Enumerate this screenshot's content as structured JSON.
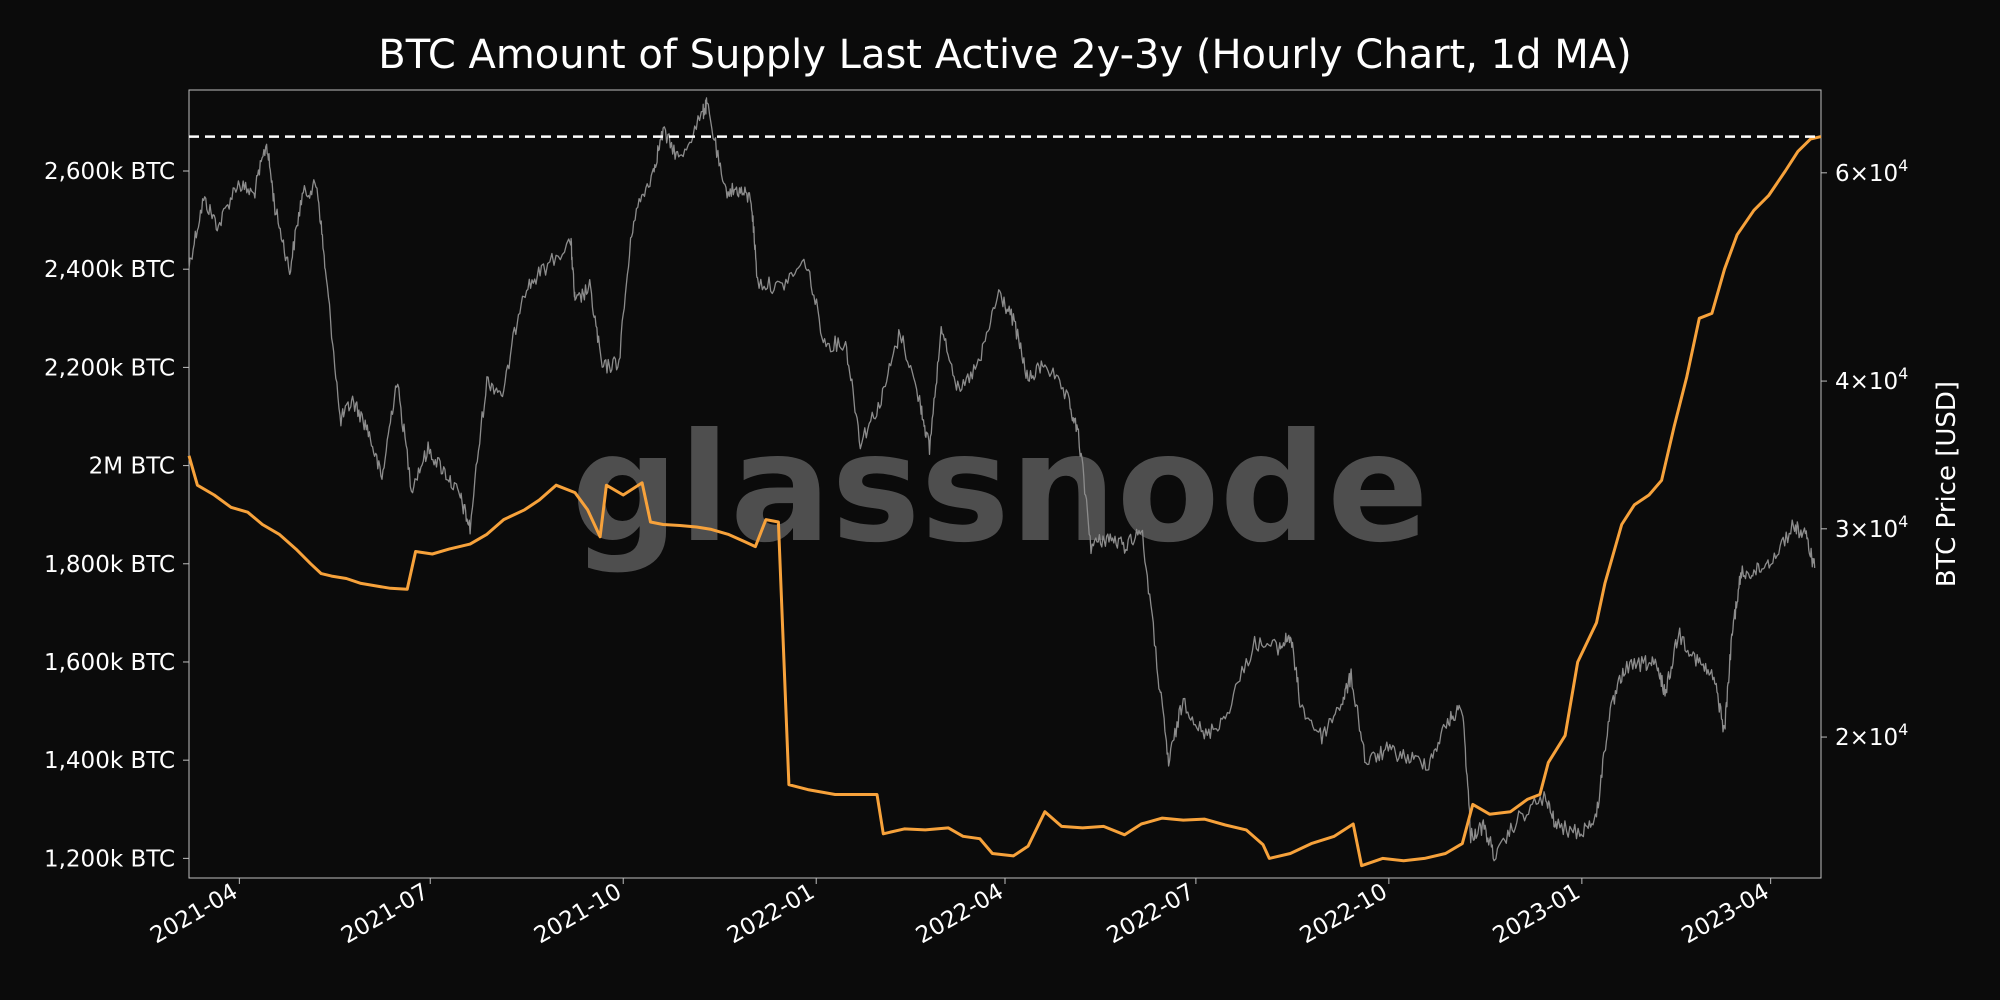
{
  "watermark": "glassnode",
  "chart_data": {
    "type": "line",
    "title": "BTC Amount of Supply Last Active 2y-3y (Hourly Chart, 1d MA)",
    "x_range": [
      "2021-03-08",
      "2023-04-25"
    ],
    "x_ticks": [
      "2021-04",
      "2021-07",
      "2021-10",
      "2022-01",
      "2022-04",
      "2022-07",
      "2022-10",
      "2023-01",
      "2023-04"
    ],
    "y_left": {
      "label": "",
      "range": [
        1160000,
        2765000
      ],
      "ticks": [
        {
          "value": 1200000,
          "label": "1,200k BTC"
        },
        {
          "value": 1400000,
          "label": "1,400k BTC"
        },
        {
          "value": 1600000,
          "label": "1,600k BTC"
        },
        {
          "value": 1800000,
          "label": "1,800k BTC"
        },
        {
          "value": 2000000,
          "label": "2M BTC"
        },
        {
          "value": 2200000,
          "label": "2,200k BTC"
        },
        {
          "value": 2400000,
          "label": "2,400k BTC"
        },
        {
          "value": 2600000,
          "label": "2,600k BTC"
        }
      ]
    },
    "y_right": {
      "label": "BTC Price [USD]",
      "scale": "log",
      "range": [
        15200,
        70500
      ],
      "ticks": [
        {
          "value": 20000,
          "mant": "2",
          "exp": "4"
        },
        {
          "value": 30000,
          "mant": "3",
          "exp": "4"
        },
        {
          "value": 40000,
          "mant": "4",
          "exp": "4"
        },
        {
          "value": 60000,
          "mant": "6",
          "exp": "4"
        }
      ]
    },
    "reference_line": {
      "value": 2670000,
      "style": "dashed",
      "color": "#ffffff"
    },
    "series": [
      {
        "axis": "left",
        "color": "#f7a23b",
        "points": [
          [
            "2021-03-08",
            2020000
          ],
          [
            "2021-03-12",
            1960000
          ],
          [
            "2021-03-20",
            1940000
          ],
          [
            "2021-03-28",
            1915000
          ],
          [
            "2021-04-05",
            1905000
          ],
          [
            "2021-04-12",
            1880000
          ],
          [
            "2021-04-20",
            1860000
          ],
          [
            "2021-04-28",
            1830000
          ],
          [
            "2021-05-05",
            1800000
          ],
          [
            "2021-05-10",
            1780000
          ],
          [
            "2021-05-15",
            1775000
          ],
          [
            "2021-05-22",
            1770000
          ],
          [
            "2021-05-29",
            1760000
          ],
          [
            "2021-06-05",
            1755000
          ],
          [
            "2021-06-12",
            1750000
          ],
          [
            "2021-06-20",
            1748000
          ],
          [
            "2021-06-24",
            1825000
          ],
          [
            "2021-07-02",
            1820000
          ],
          [
            "2021-07-10",
            1830000
          ],
          [
            "2021-07-20",
            1840000
          ],
          [
            "2021-07-28",
            1860000
          ],
          [
            "2021-08-05",
            1890000
          ],
          [
            "2021-08-15",
            1910000
          ],
          [
            "2021-08-22",
            1930000
          ],
          [
            "2021-08-30",
            1960000
          ],
          [
            "2021-09-08",
            1945000
          ],
          [
            "2021-09-14",
            1910000
          ],
          [
            "2021-09-20",
            1855000
          ],
          [
            "2021-09-23",
            1960000
          ],
          [
            "2021-10-01",
            1940000
          ],
          [
            "2021-10-10",
            1965000
          ],
          [
            "2021-10-14",
            1885000
          ],
          [
            "2021-10-20",
            1880000
          ],
          [
            "2021-10-28",
            1878000
          ],
          [
            "2021-11-05",
            1875000
          ],
          [
            "2021-11-12",
            1870000
          ],
          [
            "2021-11-20",
            1860000
          ],
          [
            "2021-11-28",
            1845000
          ],
          [
            "2021-12-03",
            1835000
          ],
          [
            "2021-12-08",
            1890000
          ],
          [
            "2021-12-14",
            1885000
          ],
          [
            "2021-12-19",
            1350000
          ],
          [
            "2021-12-28",
            1340000
          ],
          [
            "2022-01-10",
            1330000
          ],
          [
            "2022-01-20",
            1330000
          ],
          [
            "2022-01-30",
            1330000
          ],
          [
            "2022-02-02",
            1250000
          ],
          [
            "2022-02-12",
            1260000
          ],
          [
            "2022-02-22",
            1258000
          ],
          [
            "2022-03-05",
            1262000
          ],
          [
            "2022-03-12",
            1245000
          ],
          [
            "2022-03-20",
            1240000
          ],
          [
            "2022-03-26",
            1210000
          ],
          [
            "2022-04-05",
            1205000
          ],
          [
            "2022-04-12",
            1225000
          ],
          [
            "2022-04-20",
            1295000
          ],
          [
            "2022-04-28",
            1265000
          ],
          [
            "2022-05-08",
            1262000
          ],
          [
            "2022-05-18",
            1265000
          ],
          [
            "2022-05-28",
            1248000
          ],
          [
            "2022-06-05",
            1270000
          ],
          [
            "2022-06-15",
            1282000
          ],
          [
            "2022-06-25",
            1278000
          ],
          [
            "2022-07-05",
            1280000
          ],
          [
            "2022-07-15",
            1268000
          ],
          [
            "2022-07-25",
            1258000
          ],
          [
            "2022-08-02",
            1228000
          ],
          [
            "2022-08-05",
            1200000
          ],
          [
            "2022-08-15",
            1210000
          ],
          [
            "2022-08-25",
            1230000
          ],
          [
            "2022-09-05",
            1245000
          ],
          [
            "2022-09-14",
            1270000
          ],
          [
            "2022-09-18",
            1185000
          ],
          [
            "2022-09-28",
            1200000
          ],
          [
            "2022-10-08",
            1195000
          ],
          [
            "2022-10-18",
            1200000
          ],
          [
            "2022-10-28",
            1210000
          ],
          [
            "2022-11-05",
            1230000
          ],
          [
            "2022-11-10",
            1310000
          ],
          [
            "2022-11-18",
            1290000
          ],
          [
            "2022-11-28",
            1295000
          ],
          [
            "2022-12-06",
            1320000
          ],
          [
            "2022-12-12",
            1330000
          ],
          [
            "2022-12-16",
            1395000
          ],
          [
            "2022-12-24",
            1450000
          ],
          [
            "2022-12-30",
            1600000
          ],
          [
            "2023-01-08",
            1680000
          ],
          [
            "2023-01-12",
            1760000
          ],
          [
            "2023-01-20",
            1880000
          ],
          [
            "2023-01-26",
            1920000
          ],
          [
            "2023-02-02",
            1940000
          ],
          [
            "2023-02-08",
            1970000
          ],
          [
            "2023-02-14",
            2080000
          ],
          [
            "2023-02-20",
            2180000
          ],
          [
            "2023-02-26",
            2300000
          ],
          [
            "2023-03-04",
            2310000
          ],
          [
            "2023-03-10",
            2400000
          ],
          [
            "2023-03-16",
            2470000
          ],
          [
            "2023-03-24",
            2520000
          ],
          [
            "2023-03-31",
            2550000
          ],
          [
            "2023-04-08",
            2600000
          ],
          [
            "2023-04-14",
            2640000
          ],
          [
            "2023-04-20",
            2665000
          ],
          [
            "2023-04-25",
            2670000
          ]
        ]
      },
      {
        "axis": "right",
        "color": "#8c8c8c",
        "points": [
          [
            "2021-03-08",
            50000
          ],
          [
            "2021-03-15",
            57000
          ],
          [
            "2021-03-22",
            54000
          ],
          [
            "2021-03-31",
            58800
          ],
          [
            "2021-04-08",
            57500
          ],
          [
            "2021-04-14",
            63500
          ],
          [
            "2021-04-18",
            56000
          ],
          [
            "2021-04-25",
            49500
          ],
          [
            "2021-05-01",
            57500
          ],
          [
            "2021-05-08",
            58500
          ],
          [
            "2021-05-12",
            49500
          ],
          [
            "2021-05-19",
            37000
          ],
          [
            "2021-05-25",
            38500
          ],
          [
            "2021-06-01",
            36500
          ],
          [
            "2021-06-08",
            33000
          ],
          [
            "2021-06-15",
            40000
          ],
          [
            "2021-06-22",
            32500
          ],
          [
            "2021-06-30",
            35000
          ],
          [
            "2021-07-08",
            33500
          ],
          [
            "2021-07-15",
            32000
          ],
          [
            "2021-07-20",
            30000
          ],
          [
            "2021-07-28",
            40000
          ],
          [
            "2021-08-05",
            39000
          ],
          [
            "2021-08-14",
            47500
          ],
          [
            "2021-08-23",
            49500
          ],
          [
            "2021-09-06",
            52500
          ],
          [
            "2021-09-08",
            46500
          ],
          [
            "2021-09-15",
            48000
          ],
          [
            "2021-09-21",
            41000
          ],
          [
            "2021-09-29",
            41500
          ],
          [
            "2021-10-06",
            55000
          ],
          [
            "2021-10-15",
            60000
          ],
          [
            "2021-10-20",
            65000
          ],
          [
            "2021-10-28",
            61500
          ],
          [
            "2021-11-08",
            67500
          ],
          [
            "2021-11-10",
            68500
          ],
          [
            "2021-11-18",
            58000
          ],
          [
            "2021-11-25",
            58000
          ],
          [
            "2021-12-01",
            57000
          ],
          [
            "2021-12-04",
            48500
          ],
          [
            "2021-12-15",
            48000
          ],
          [
            "2021-12-27",
            50500
          ],
          [
            "2022-01-05",
            43000
          ],
          [
            "2022-01-15",
            43000
          ],
          [
            "2022-01-22",
            35500
          ],
          [
            "2022-02-01",
            38500
          ],
          [
            "2022-02-10",
            44000
          ],
          [
            "2022-02-20",
            38000
          ],
          [
            "2022-02-24",
            35000
          ],
          [
            "2022-03-02",
            44500
          ],
          [
            "2022-03-10",
            39000
          ],
          [
            "2022-03-20",
            41500
          ],
          [
            "2022-03-29",
            47500
          ],
          [
            "2022-04-05",
            45000
          ],
          [
            "2022-04-12",
            40000
          ],
          [
            "2022-04-20",
            41500
          ],
          [
            "2022-05-01",
            38500
          ],
          [
            "2022-05-06",
            36000
          ],
          [
            "2022-05-12",
            29000
          ],
          [
            "2022-05-20",
            29500
          ],
          [
            "2022-05-28",
            29000
          ],
          [
            "2022-06-05",
            30000
          ],
          [
            "2022-06-13",
            22500
          ],
          [
            "2022-06-18",
            19000
          ],
          [
            "2022-06-25",
            21500
          ],
          [
            "2022-07-05",
            20000
          ],
          [
            "2022-07-15",
            20800
          ],
          [
            "2022-07-29",
            24000
          ],
          [
            "2022-08-10",
            23800
          ],
          [
            "2022-08-15",
            24400
          ],
          [
            "2022-08-20",
            21200
          ],
          [
            "2022-08-30",
            20000
          ],
          [
            "2022-09-09",
            21500
          ],
          [
            "2022-09-13",
            22500
          ],
          [
            "2022-09-20",
            19000
          ],
          [
            "2022-09-30",
            19500
          ],
          [
            "2022-10-10",
            19200
          ],
          [
            "2022-10-20",
            19000
          ],
          [
            "2022-10-29",
            20600
          ],
          [
            "2022-11-05",
            21200
          ],
          [
            "2022-11-09",
            16500
          ],
          [
            "2022-11-15",
            16800
          ],
          [
            "2022-11-21",
            15800
          ],
          [
            "2022-12-01",
            17000
          ],
          [
            "2022-12-14",
            17800
          ],
          [
            "2022-12-20",
            16800
          ],
          [
            "2022-12-31",
            16600
          ],
          [
            "2023-01-08",
            17100
          ],
          [
            "2023-01-14",
            20800
          ],
          [
            "2023-01-21",
            22800
          ],
          [
            "2023-01-31",
            23100
          ],
          [
            "2023-02-05",
            23000
          ],
          [
            "2023-02-10",
            21800
          ],
          [
            "2023-02-16",
            24500
          ],
          [
            "2023-02-25",
            23200
          ],
          [
            "2023-03-05",
            22400
          ],
          [
            "2023-03-10",
            20200
          ],
          [
            "2023-03-14",
            24800
          ],
          [
            "2023-03-18",
            27500
          ],
          [
            "2023-03-25",
            27600
          ],
          [
            "2023-04-02",
            28300
          ],
          [
            "2023-04-12",
            30200
          ],
          [
            "2023-04-18",
            29500
          ],
          [
            "2023-04-22",
            27800
          ]
        ]
      }
    ]
  }
}
